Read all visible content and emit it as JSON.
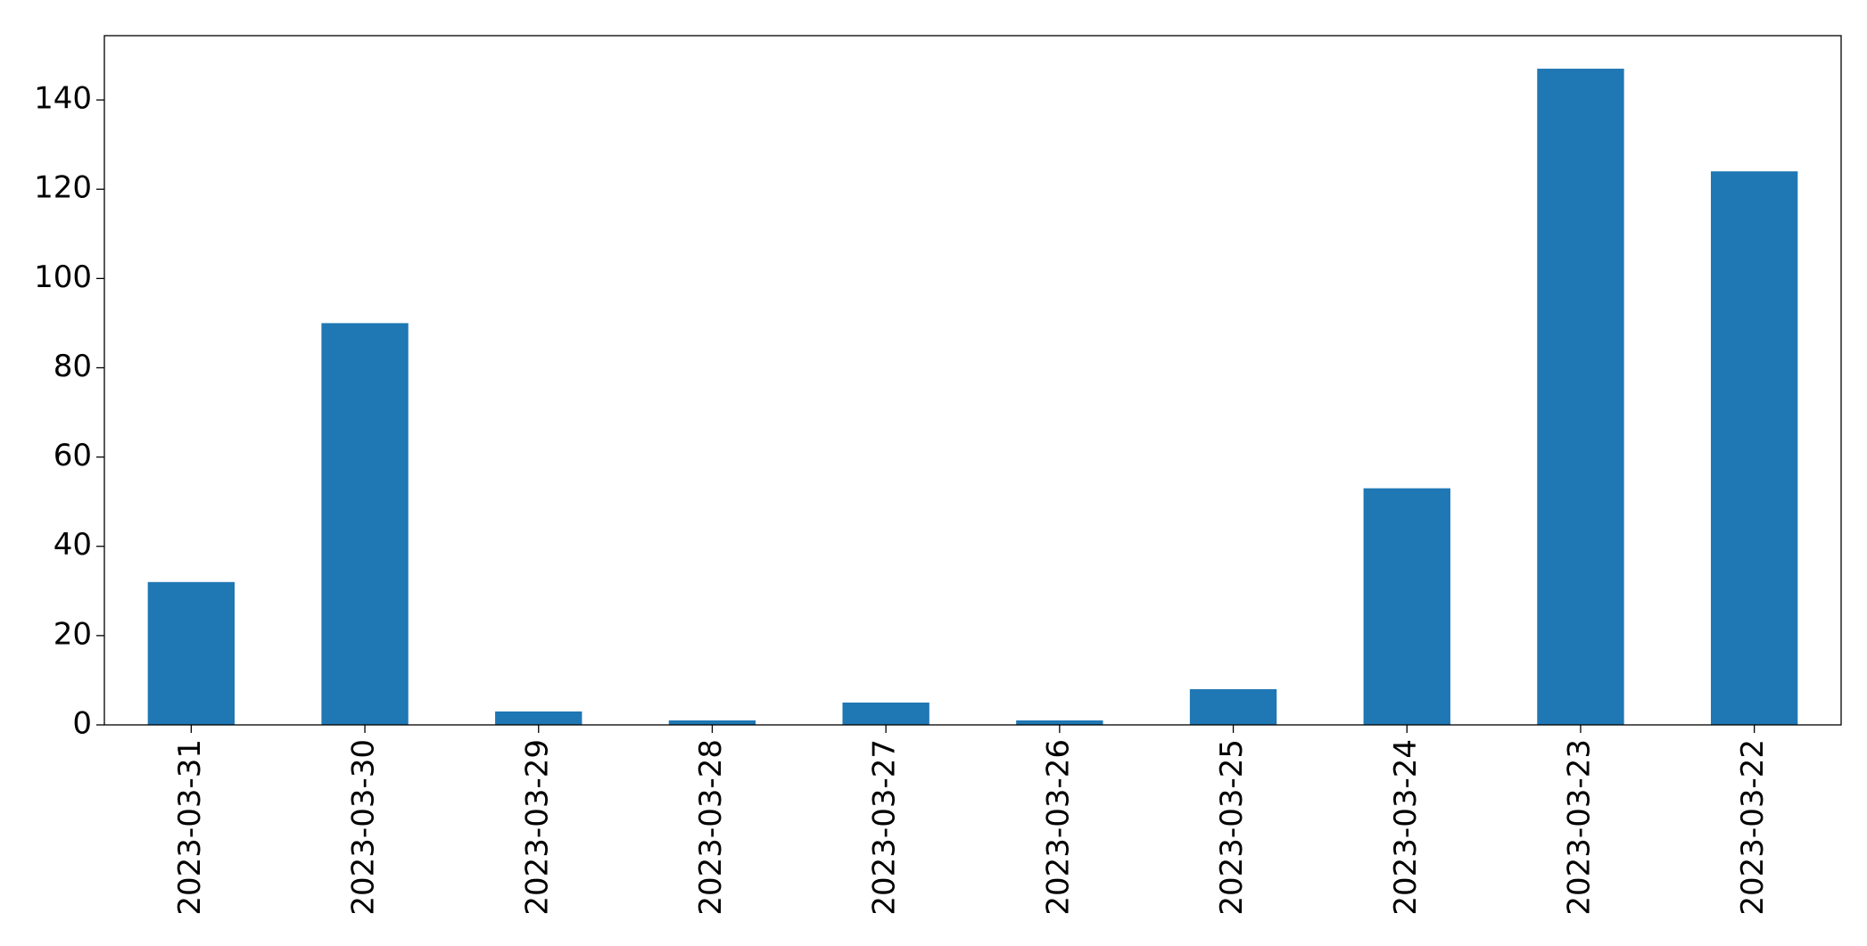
{
  "chart_data": {
    "type": "bar",
    "categories": [
      "2023-03-31",
      "2023-03-30",
      "2023-03-29",
      "2023-03-28",
      "2023-03-27",
      "2023-03-26",
      "2023-03-25",
      "2023-03-24",
      "2023-03-23",
      "2023-03-22"
    ],
    "values": [
      32,
      90,
      3,
      1,
      5,
      1,
      8,
      53,
      147,
      124
    ],
    "color": "#1f77b4",
    "ylim": [
      0,
      154.4
    ],
    "yticks": [
      0,
      20,
      40,
      60,
      80,
      100,
      120,
      140
    ],
    "grid": false
  }
}
